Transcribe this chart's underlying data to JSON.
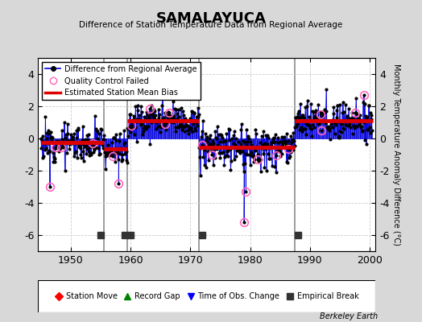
{
  "title": "SAMALAYUCA",
  "subtitle": "Difference of Station Temperature Data from Regional Average",
  "ylabel": "Monthly Temperature Anomaly Difference (°C)",
  "xlabel_note": "Berkeley Earth",
  "xlim": [
    1944.5,
    2001
  ],
  "ylim": [
    -7,
    5
  ],
  "yticks": [
    -6,
    -4,
    -2,
    0,
    2,
    4
  ],
  "xticks": [
    1950,
    1960,
    1970,
    1980,
    1990,
    2000
  ],
  "bg_color": "#d8d8d8",
  "plot_bg_color": "#ffffff",
  "grid_color": "#cccccc",
  "line_color": "#0000dd",
  "bias_color": "#dd0000",
  "qc_color": "#ff66bb",
  "break_marker_color": "#333333",
  "segments": [
    {
      "start": 1945.0,
      "end": 1955.5,
      "bias": -0.25,
      "noise": 0.55
    },
    {
      "start": 1955.5,
      "end": 1959.5,
      "bias": -0.65,
      "noise": 0.55
    },
    {
      "start": 1959.5,
      "end": 1971.5,
      "bias": 1.1,
      "noise": 0.55
    },
    {
      "start": 1971.5,
      "end": 1987.5,
      "bias": -0.55,
      "noise": 0.65
    },
    {
      "start": 1987.5,
      "end": 2000.5,
      "bias": 1.1,
      "noise": 0.55
    }
  ],
  "break_years": [
    1955,
    1959,
    1960,
    1972,
    1988
  ],
  "vertical_lines": [
    1955.5,
    1959.5,
    1971.5,
    1987.5
  ],
  "seed": 12
}
